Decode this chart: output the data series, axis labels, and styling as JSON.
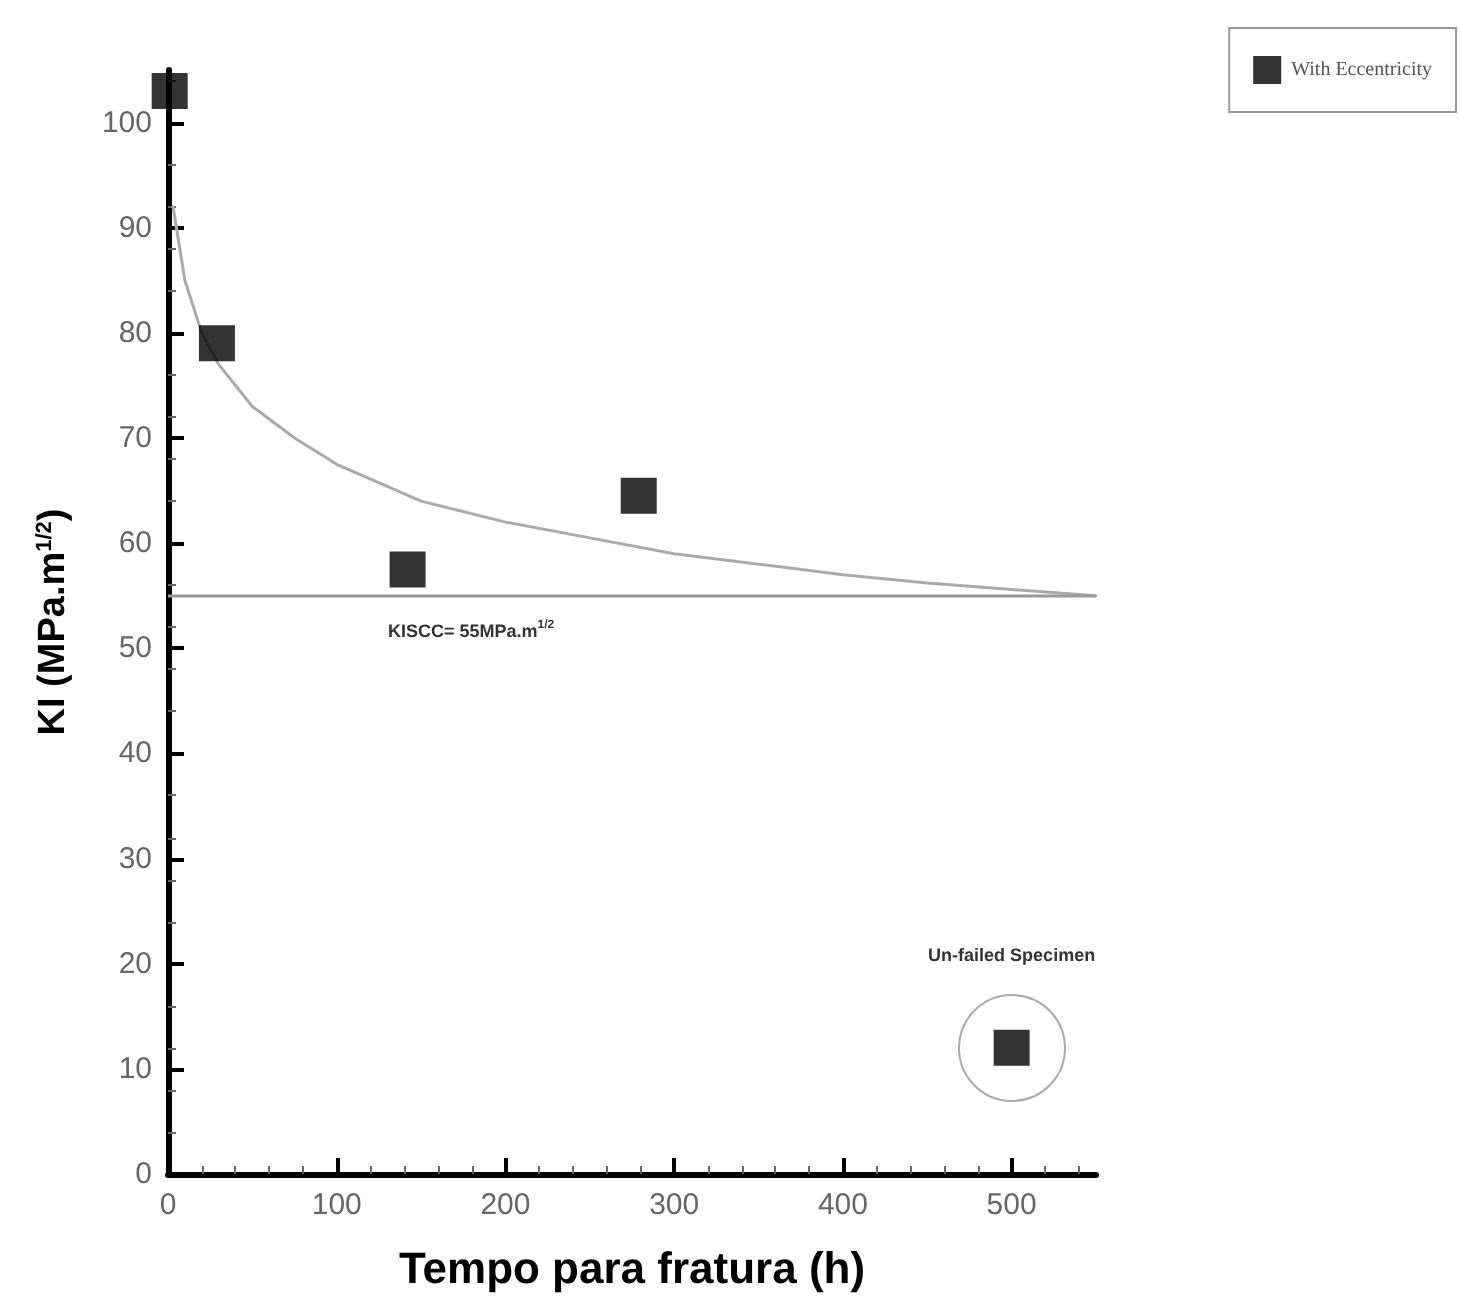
{
  "chart_data": {
    "type": "scatter",
    "xlabel": "Tempo para fratura (h)",
    "ylabel": "KI (MPa.m$^{1/2}$)",
    "xlim": [
      0,
      550
    ],
    "xticks": [
      0,
      100,
      200,
      300,
      400,
      500
    ],
    "ylim": [
      0,
      105
    ],
    "yticks": [
      0,
      10,
      20,
      30,
      40,
      50,
      60,
      70,
      80,
      90,
      100
    ],
    "grid": false,
    "legend": "top right",
    "series": [
      {
        "name": "With Eccentricity",
        "color": "#000000",
        "marker": "square",
        "x": [
          1,
          29,
          142,
          279,
          500
        ],
        "values": [
          103,
          79,
          57.5,
          64.5,
          12
        ]
      },
      {
        "type": "line",
        "marker": "none",
        "color": "#aaaaaa",
        "x": [
          3,
          10,
          20,
          30,
          50,
          75,
          100,
          150,
          200,
          250,
          300,
          350,
          400,
          450,
          500,
          550
        ],
        "values": [
          92,
          85,
          80,
          77,
          73,
          70,
          67.5,
          64,
          62,
          60.5,
          59,
          58,
          57,
          56.2,
          55.6,
          55
        ]
      }
    ],
    "ref_lines": [
      {
        "axis": "y",
        "value": 55,
        "label": "KISCC= 55MPa.m$^{1/2}$",
        "color": "#999999"
      }
    ],
    "annotations": [
      "Un-failed Specimen"
    ]
  }
}
